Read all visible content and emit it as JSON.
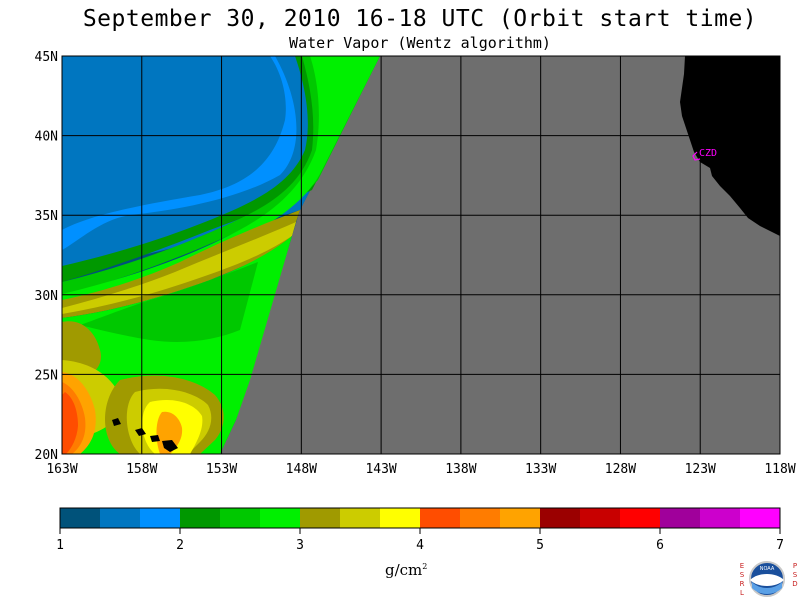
{
  "header": {
    "title": "September 30, 2010  16-18 UTC  (Orbit start time)",
    "subtitle": "Water Vapor (Wentz algorithm)"
  },
  "map": {
    "lon_ticks": [
      "163W",
      "158W",
      "153W",
      "148W",
      "143W",
      "138W",
      "133W",
      "128W",
      "123W",
      "118W"
    ],
    "lat_ticks": [
      "45N",
      "40N",
      "35N",
      "30N",
      "25N",
      "20N"
    ],
    "station_label": "CZD",
    "colors": {
      "no_data": "#6e6e6e",
      "land": "#000000",
      "station": "#ff00ff"
    }
  },
  "colorbar": {
    "colors": [
      "#00527a",
      "#0076c0",
      "#0090ff",
      "#009800",
      "#00c800",
      "#00f000",
      "#a09a00",
      "#cccc00",
      "#ffff00",
      "#ff4d00",
      "#ff7c00",
      "#ffa300",
      "#9b0000",
      "#c80000",
      "#ff0000",
      "#a0009b",
      "#cc00cc",
      "#ff00ff"
    ],
    "tick_labels": [
      "1",
      "2",
      "3",
      "4",
      "5",
      "6",
      "7"
    ],
    "units": "g/cm",
    "units_exp": "2"
  },
  "logo": {
    "left_letters": "ESRL",
    "right_letters": "PSD",
    "center_text": "NOAA"
  }
}
